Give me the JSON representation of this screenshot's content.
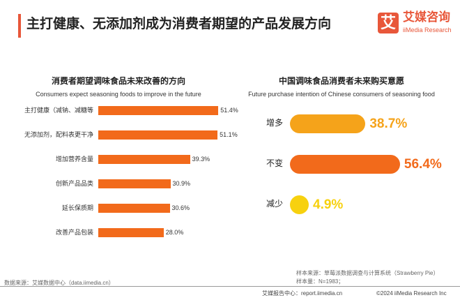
{
  "header": {
    "title": "主打健康、无添加剂成为消费者期望的产品发展方向",
    "logo_mark": "艾",
    "logo_cn": "艾媒咨询",
    "logo_en": "iiMedia Research",
    "accent": "#e8573a"
  },
  "chart_data": [
    {
      "type": "bar",
      "orientation": "horizontal",
      "title": "消费者期望调味食品未来改善的方向",
      "subtitle": "Consumers expect seasoning foods to improve in the future",
      "categories": [
        "主打健康（减钠、减糖等",
        "无添加剂，配料表更干净",
        "增加营养含量",
        "创新产品品类",
        "延长保质期",
        "改善产品包装"
      ],
      "values": [
        51.4,
        51.1,
        39.3,
        30.9,
        30.6,
        28.0
      ],
      "labels": [
        "51.4%",
        "51.1%",
        "39.3%",
        "30.9%",
        "30.6%",
        "28.0%"
      ],
      "color": "#f26a1b",
      "xlim": [
        0,
        55
      ]
    },
    {
      "type": "bar",
      "orientation": "horizontal",
      "title": "中国调味食品消费者未来购买意愿",
      "subtitle": "Future purchase intention of Chinese consumers of seasoning food",
      "categories": [
        "增多",
        "不变",
        "减少"
      ],
      "values": [
        38.7,
        56.4,
        4.9
      ],
      "labels": [
        "38.7%",
        "56.4%",
        "4.9%"
      ],
      "colors": [
        "#f5a31a",
        "#f26a1b",
        "#f7d10f"
      ],
      "xlim": [
        0,
        60
      ]
    }
  ],
  "footer": {
    "source": "数据来源：艾媒数据中心（data.iimedia.cn）",
    "sample_source": "样本来源：草莓派数据调查与计算系统（Strawberry Pie）",
    "sample_size": "样本量：N=1983；",
    "report": "艾媒报告中心：report.iimedia.cn",
    "copyright": "©2024  iiMedia Research Inc"
  }
}
